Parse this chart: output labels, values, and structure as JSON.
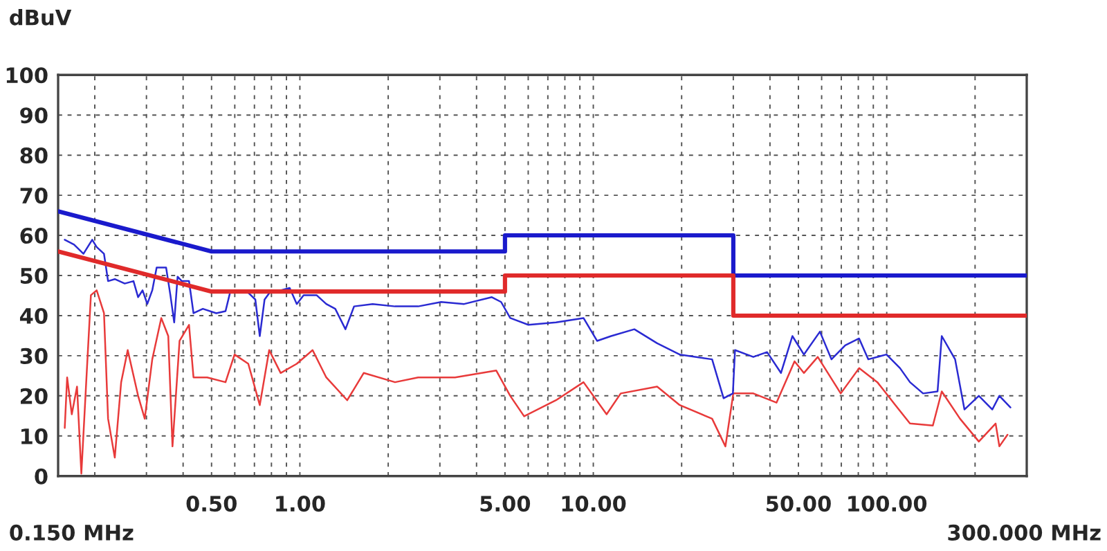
{
  "chart_data": {
    "type": "line",
    "ylabel": "dBuV",
    "annotations": [
      "0.150 MHz",
      "300.000 MHz"
    ],
    "log": "x",
    "xlim": [
      0.15,
      300
    ],
    "xticks": [
      {
        "value": 0.5,
        "label": "0.50"
      },
      {
        "value": 1,
        "label": "1.00"
      },
      {
        "value": 5,
        "label": "5.00"
      },
      {
        "value": 10,
        "label": "10.00"
      },
      {
        "value": 50,
        "label": "50.00"
      },
      {
        "value": 100,
        "label": "100.00"
      }
    ],
    "ylim": [
      0,
      100
    ],
    "yticks": [
      0,
      10,
      20,
      30,
      40,
      50,
      60,
      70,
      80,
      90,
      100
    ],
    "grid": true,
    "line_style": "solid",
    "series": [
      {
        "color": "#e83a3a",
        "x": [
          0.158,
          0.161,
          0.167,
          0.174,
          0.18,
          0.187,
          0.194,
          0.203,
          0.215,
          0.222,
          0.234,
          0.246,
          0.259,
          0.281,
          0.296,
          0.314,
          0.337,
          0.356,
          0.368,
          0.389,
          0.419,
          0.434,
          0.483,
          0.558,
          0.599,
          0.667,
          0.73,
          0.786,
          0.86,
          0.976,
          1.105,
          1.23,
          1.45,
          1.65,
          2.11,
          2.53,
          3.38,
          4.67,
          5.21,
          5.81,
          7.46,
          9.26,
          11.1,
          12.4,
          16.5,
          19.7,
          25.4,
          28.2,
          30.0,
          35.1,
          42.1,
          48.5,
          52.2,
          58.2,
          69.7,
          80.5,
          92.9,
          107,
          120,
          143.6,
          154,
          177.7,
          206,
          235,
          242,
          258
        ],
        "values": [
          12.0,
          24.6,
          15.4,
          22.3,
          0.6,
          23.4,
          45.1,
          46.3,
          40.6,
          14.3,
          4.6,
          23.4,
          31.4,
          20.0,
          14.3,
          29.1,
          39.4,
          34.9,
          7.4,
          33.7,
          37.7,
          24.6,
          24.6,
          23.4,
          30.3,
          28.0,
          17.7,
          31.4,
          25.7,
          28.0,
          31.4,
          24.6,
          18.9,
          25.7,
          23.4,
          24.6,
          24.6,
          26.3,
          20.0,
          14.9,
          18.9,
          23.4,
          15.4,
          20.6,
          22.3,
          17.7,
          14.3,
          7.4,
          20.6,
          20.6,
          18.3,
          28.6,
          25.7,
          29.7,
          20.6,
          26.9,
          23.4,
          17.7,
          13.1,
          12.6,
          21.1,
          14.3,
          8.6,
          13.1,
          7.4,
          10.3
        ]
      },
      {
        "color": "#2a2ad2",
        "x": [
          0.158,
          0.17,
          0.183,
          0.196,
          0.203,
          0.215,
          0.222,
          0.234,
          0.253,
          0.271,
          0.281,
          0.291,
          0.302,
          0.314,
          0.325,
          0.35,
          0.362,
          0.373,
          0.383,
          0.396,
          0.419,
          0.434,
          0.467,
          0.519,
          0.558,
          0.578,
          0.621,
          0.667,
          0.705,
          0.73,
          0.758,
          0.799,
          0.86,
          0.923,
          0.976,
          1.03,
          1.14,
          1.23,
          1.32,
          1.43,
          1.53,
          1.77,
          2.11,
          2.53,
          3.03,
          3.63,
          4.51,
          4.85,
          5.21,
          6.01,
          7.46,
          9.26,
          10.3,
          11.5,
          13.8,
          16.5,
          19.7,
          25.4,
          27.8,
          29.9,
          30.4,
          35.1,
          39.1,
          43.6,
          47.7,
          52.2,
          59.2,
          64.8,
          72.2,
          80.5,
          86.5,
          99.8,
          111,
          120,
          133,
          149,
          154,
          171,
          184,
          206,
          229,
          242,
          264
        ],
        "values": [
          58.9,
          57.7,
          55.4,
          58.9,
          57.1,
          55.4,
          48.6,
          49.1,
          48.0,
          48.6,
          44.6,
          46.3,
          42.9,
          46.3,
          52.0,
          52.0,
          45.1,
          38.3,
          49.7,
          48.6,
          48.6,
          40.6,
          41.7,
          40.6,
          41.1,
          45.7,
          46.3,
          45.7,
          44.0,
          34.9,
          44.0,
          46.3,
          46.3,
          46.9,
          42.9,
          45.1,
          45.1,
          42.9,
          41.7,
          36.6,
          42.3,
          42.9,
          42.3,
          42.3,
          43.4,
          42.9,
          44.6,
          43.4,
          39.4,
          37.7,
          38.3,
          39.4,
          33.7,
          34.9,
          36.6,
          33.1,
          30.3,
          29.1,
          19.4,
          20.6,
          31.4,
          29.7,
          30.9,
          25.7,
          34.9,
          30.3,
          36.0,
          29.1,
          32.6,
          34.3,
          29.1,
          30.3,
          26.9,
          23.4,
          20.6,
          21.1,
          34.9,
          29.1,
          16.6,
          20.0,
          16.6,
          20.0,
          17.1
        ]
      },
      {
        "color": "#1a1acc",
        "x": [
          0.15,
          0.5,
          5,
          5,
          30,
          30,
          300
        ],
        "values": [
          66,
          56,
          56,
          60,
          60,
          50,
          50
        ]
      },
      {
        "color": "#e02a2a",
        "x": [
          0.15,
          0.5,
          5,
          5,
          30,
          30,
          300
        ],
        "values": [
          56,
          46,
          46,
          50,
          50,
          40,
          40
        ]
      }
    ]
  }
}
